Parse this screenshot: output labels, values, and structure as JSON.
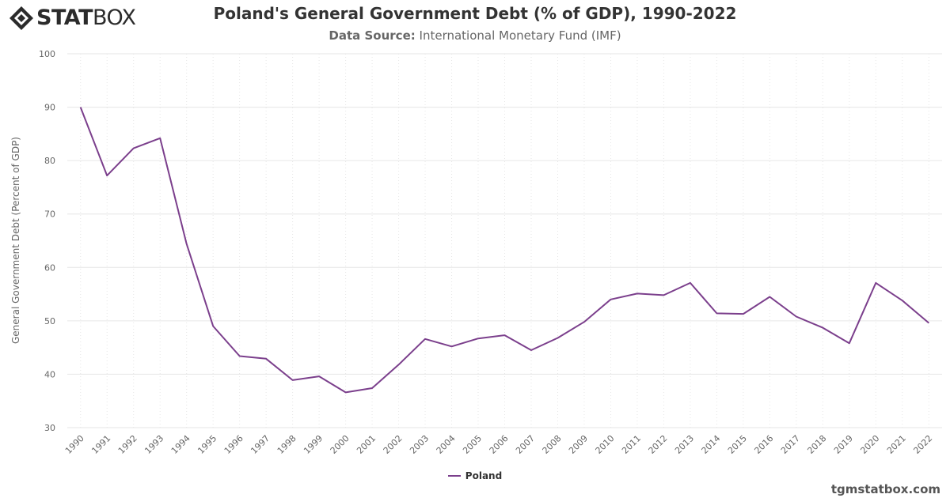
{
  "brand": {
    "logo_strong": "STAT",
    "logo_light": "BOX",
    "credit": "tgmstatbox.com"
  },
  "colors": {
    "series": "#7b3f8c",
    "grid": "#e6e6e6",
    "axis_text": "#666666"
  },
  "chart_data": {
    "type": "line",
    "title": "Poland's General Government Debt (% of GDP), 1990-2022",
    "subtitle_label": "Data Source:",
    "subtitle_value": "International Monetary Fund (IMF)",
    "xlabel": "",
    "ylabel": "General Government Debt (Percent of GDP)",
    "ylim": [
      30,
      100
    ],
    "yticks": [
      30,
      40,
      50,
      60,
      70,
      80,
      90,
      100
    ],
    "grid": true,
    "legend_position": "bottom-center",
    "x": [
      "1990",
      "1991",
      "1992",
      "1993",
      "1994",
      "1995",
      "1996",
      "1997",
      "1998",
      "1999",
      "2000",
      "2001",
      "2002",
      "2003",
      "2004",
      "2005",
      "2006",
      "2007",
      "2008",
      "2009",
      "2010",
      "2011",
      "2012",
      "2013",
      "2014",
      "2015",
      "2016",
      "2017",
      "2018",
      "2019",
      "2020",
      "2021",
      "2022"
    ],
    "series": [
      {
        "name": "Poland",
        "values": [
          90.0,
          77.2,
          82.3,
          84.2,
          64.4,
          49.0,
          43.4,
          42.9,
          38.9,
          39.6,
          36.6,
          37.4,
          41.8,
          46.6,
          45.2,
          46.7,
          47.3,
          44.5,
          46.8,
          49.8,
          54.0,
          55.1,
          54.8,
          57.1,
          51.4,
          51.3,
          54.5,
          50.8,
          48.7,
          45.8,
          57.1,
          53.8,
          49.6
        ]
      }
    ]
  }
}
